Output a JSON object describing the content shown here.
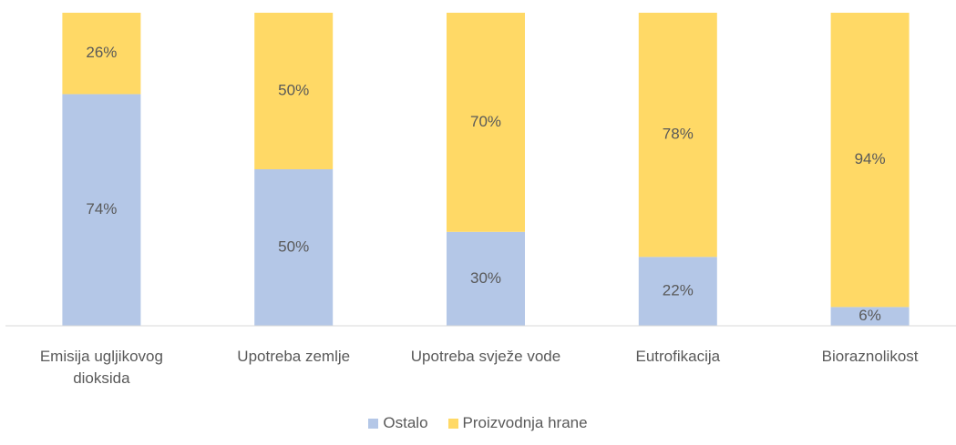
{
  "chart_data": {
    "type": "stacked_bar",
    "categories": [
      "Emisija ugljikovog dioksida",
      "Upotreba zemlje",
      "Upotreba svježe vode",
      "Eutrofikacija",
      "Bioraznolikost"
    ],
    "series": [
      {
        "name": "Ostalo",
        "color": "#b4c7e7",
        "values": [
          74,
          50,
          30,
          22,
          6
        ],
        "value_labels": [
          "74%",
          "50%",
          "30%",
          "22%",
          "6%"
        ]
      },
      {
        "name": "Proizvodnja hrane",
        "color": "#ffd966",
        "values": [
          26,
          50,
          70,
          78,
          94
        ],
        "value_labels": [
          "26%",
          "50%",
          "70%",
          "78%",
          "94%"
        ]
      }
    ],
    "ylim": [
      0,
      100
    ],
    "legend": "bottom"
  }
}
